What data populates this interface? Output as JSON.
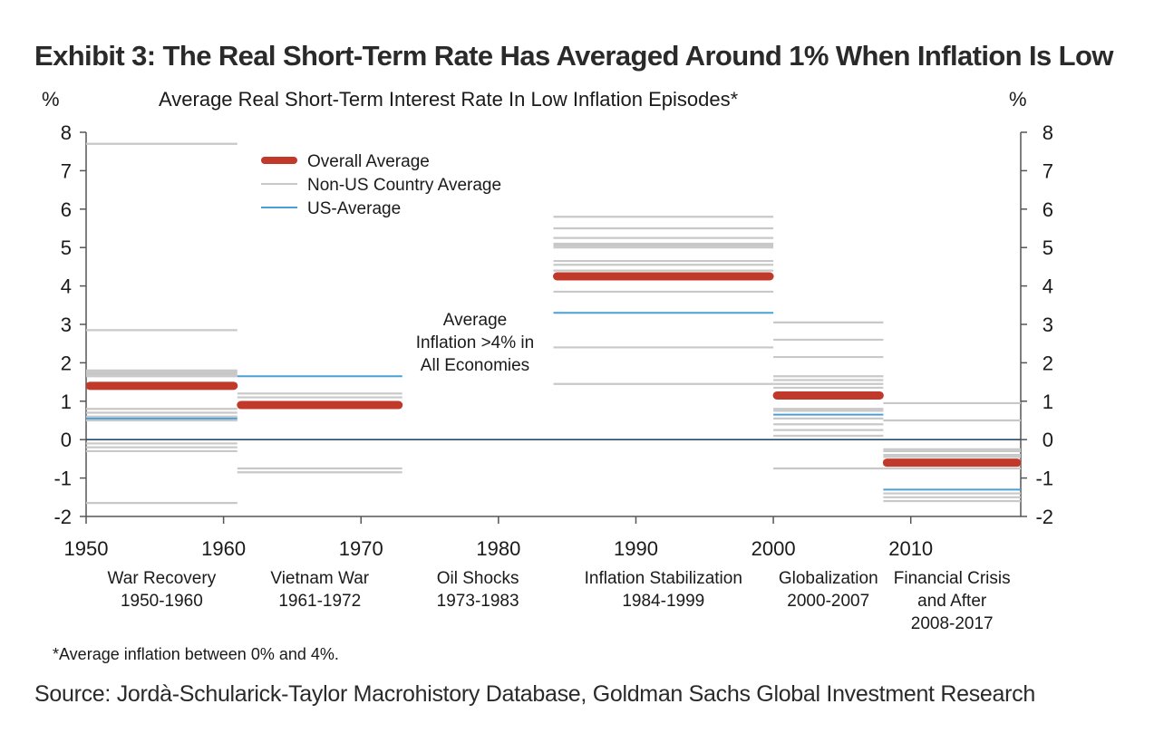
{
  "title": "Exhibit 3: The Real Short-Term Rate Has Averaged Around 1% When Inflation Is Low",
  "source": "Source: Jordà-Schularick-Taylor Macrohistory Database, Goldman Sachs Global Investment Research",
  "chart_data": {
    "type": "line",
    "subtitle": "Average  Real  Short-Term  Interest  Rate  In  Low  Inflation  Episodes*",
    "ylabel_left": "%",
    "ylabel_right": "%",
    "xlim": [
      1950,
      2018
    ],
    "ylim": [
      -2,
      8
    ],
    "y_ticks": [
      -2,
      -1,
      0,
      1,
      2,
      3,
      4,
      5,
      6,
      7,
      8
    ],
    "x_ticks": [
      1950,
      1960,
      1970,
      1980,
      1990,
      2000,
      2010
    ],
    "grid": false,
    "zero_line": true,
    "legend_position": "top-left",
    "legend": [
      {
        "label": "Overall Average",
        "color": "#c0392b",
        "style": "thick"
      },
      {
        "label": "Non-US Country Average",
        "color": "#c8c8c8",
        "style": "thin"
      },
      {
        "label": "US-Average",
        "color": "#4a9fd6",
        "style": "thin"
      }
    ],
    "colors": {
      "overall": "#c0392b",
      "non_us": "#c8c8c8",
      "us": "#4a9fd6",
      "zero": "#2a4a6a"
    },
    "episodes": [
      {
        "label_lines": [
          "War Recovery",
          "1950-1960"
        ],
        "x_start": 1950,
        "x_end": 1961,
        "overall": 1.4,
        "us": 0.55,
        "non_us": [
          7.7,
          2.85,
          1.8,
          1.75,
          1.7,
          1.65,
          0.8,
          0.7,
          0.6,
          0.5,
          -0.1,
          -0.2,
          -0.3,
          -1.65
        ]
      },
      {
        "label_lines": [
          "Vietnam War",
          "1961-1972"
        ],
        "x_start": 1961,
        "x_end": 1973,
        "overall": 0.9,
        "us": 1.65,
        "non_us": [
          1.2,
          1.1,
          -0.75,
          -0.85
        ]
      },
      {
        "label_lines": [
          "Oil Shocks",
          "1973-1983"
        ],
        "x_start": 1973,
        "x_end": 1984,
        "overall": null,
        "us": null,
        "non_us": [],
        "annotation": [
          "Average",
          "Inflation >4% in",
          "All Economies"
        ]
      },
      {
        "label_lines": [
          "Inflation Stabilization",
          "1984-1999"
        ],
        "x_start": 1984,
        "x_end": 2000,
        "overall": 4.25,
        "us": 3.3,
        "non_us": [
          5.8,
          5.5,
          5.25,
          5.1,
          5.05,
          5.0,
          4.65,
          4.55,
          4.4,
          3.85,
          2.4,
          1.45
        ]
      },
      {
        "label_lines": [
          "Globalization",
          "2000-2007"
        ],
        "x_start": 2000,
        "x_end": 2008,
        "overall": 1.15,
        "us": 0.65,
        "non_us": [
          3.05,
          2.6,
          2.15,
          1.65,
          1.55,
          1.45,
          1.35,
          0.8,
          0.75,
          0.55,
          0.4,
          0.25,
          0.1,
          -0.75
        ]
      },
      {
        "label_lines": [
          "Financial Crisis",
          "and After",
          "2008-2017"
        ],
        "x_start": 2008,
        "x_end": 2018,
        "overall": -0.6,
        "us": -1.3,
        "non_us": [
          0.95,
          0.5,
          -0.25,
          -0.3,
          -0.4,
          -0.45,
          -0.55,
          -0.65,
          -0.75,
          -1.4,
          -1.5,
          -1.6
        ]
      }
    ],
    "footnote": "*Average inflation between 0% and 4%."
  }
}
